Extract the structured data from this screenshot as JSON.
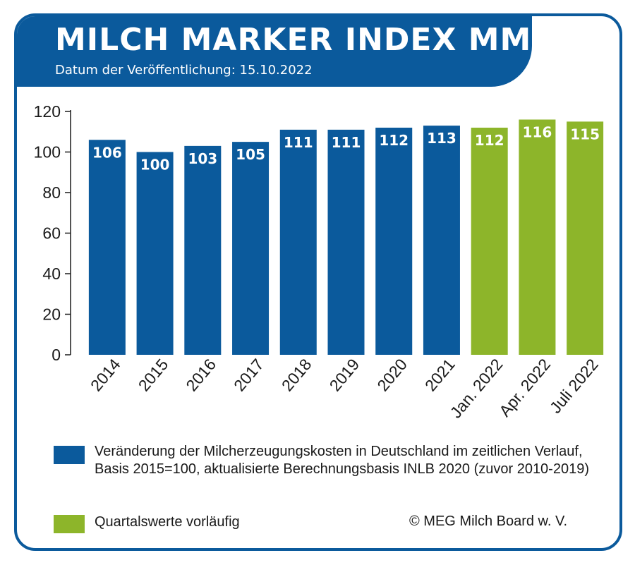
{
  "header": {
    "title": "MILCH MARKER INDEX MMI",
    "subtitle": "Datum der Veröffentlichung: 15.10.2022"
  },
  "colors": {
    "brand_blue": "#0b5a9c",
    "provisional_green": "#8db52a"
  },
  "chart_data": {
    "type": "bar",
    "categories": [
      "2014",
      "2015",
      "2016",
      "2017",
      "2018",
      "2019",
      "2020",
      "2021",
      "Jan. 2022",
      "Apr. 2022",
      "Juli 2022"
    ],
    "values": [
      106,
      100,
      103,
      105,
      111,
      111,
      112,
      113,
      112,
      116,
      115
    ],
    "value_labels": [
      "106",
      "100",
      "103",
      "105",
      "111",
      "111",
      "112",
      "113",
      "112",
      "116",
      "115"
    ],
    "provisional": [
      false,
      false,
      false,
      false,
      false,
      false,
      false,
      false,
      true,
      true,
      true
    ],
    "ylim": [
      0,
      120
    ],
    "yticks": [
      0,
      20,
      40,
      60,
      80,
      100,
      120
    ],
    "grid": false,
    "legend_placement": "bottom"
  },
  "legend": {
    "items": [
      {
        "label": "Veränderung der Milcherzeugungskosten in Deutschland im zeitlichen Verlauf, Basis 2015=100, aktualisierte Berechnungsbasis INLB 2020 (zuvor 2010-2019)",
        "color": "#0b5a9c"
      },
      {
        "label": "Quartalswerte vorläufig",
        "color": "#8db52a"
      }
    ]
  },
  "footer": {
    "copyright": "© MEG Milch Board w. V."
  }
}
